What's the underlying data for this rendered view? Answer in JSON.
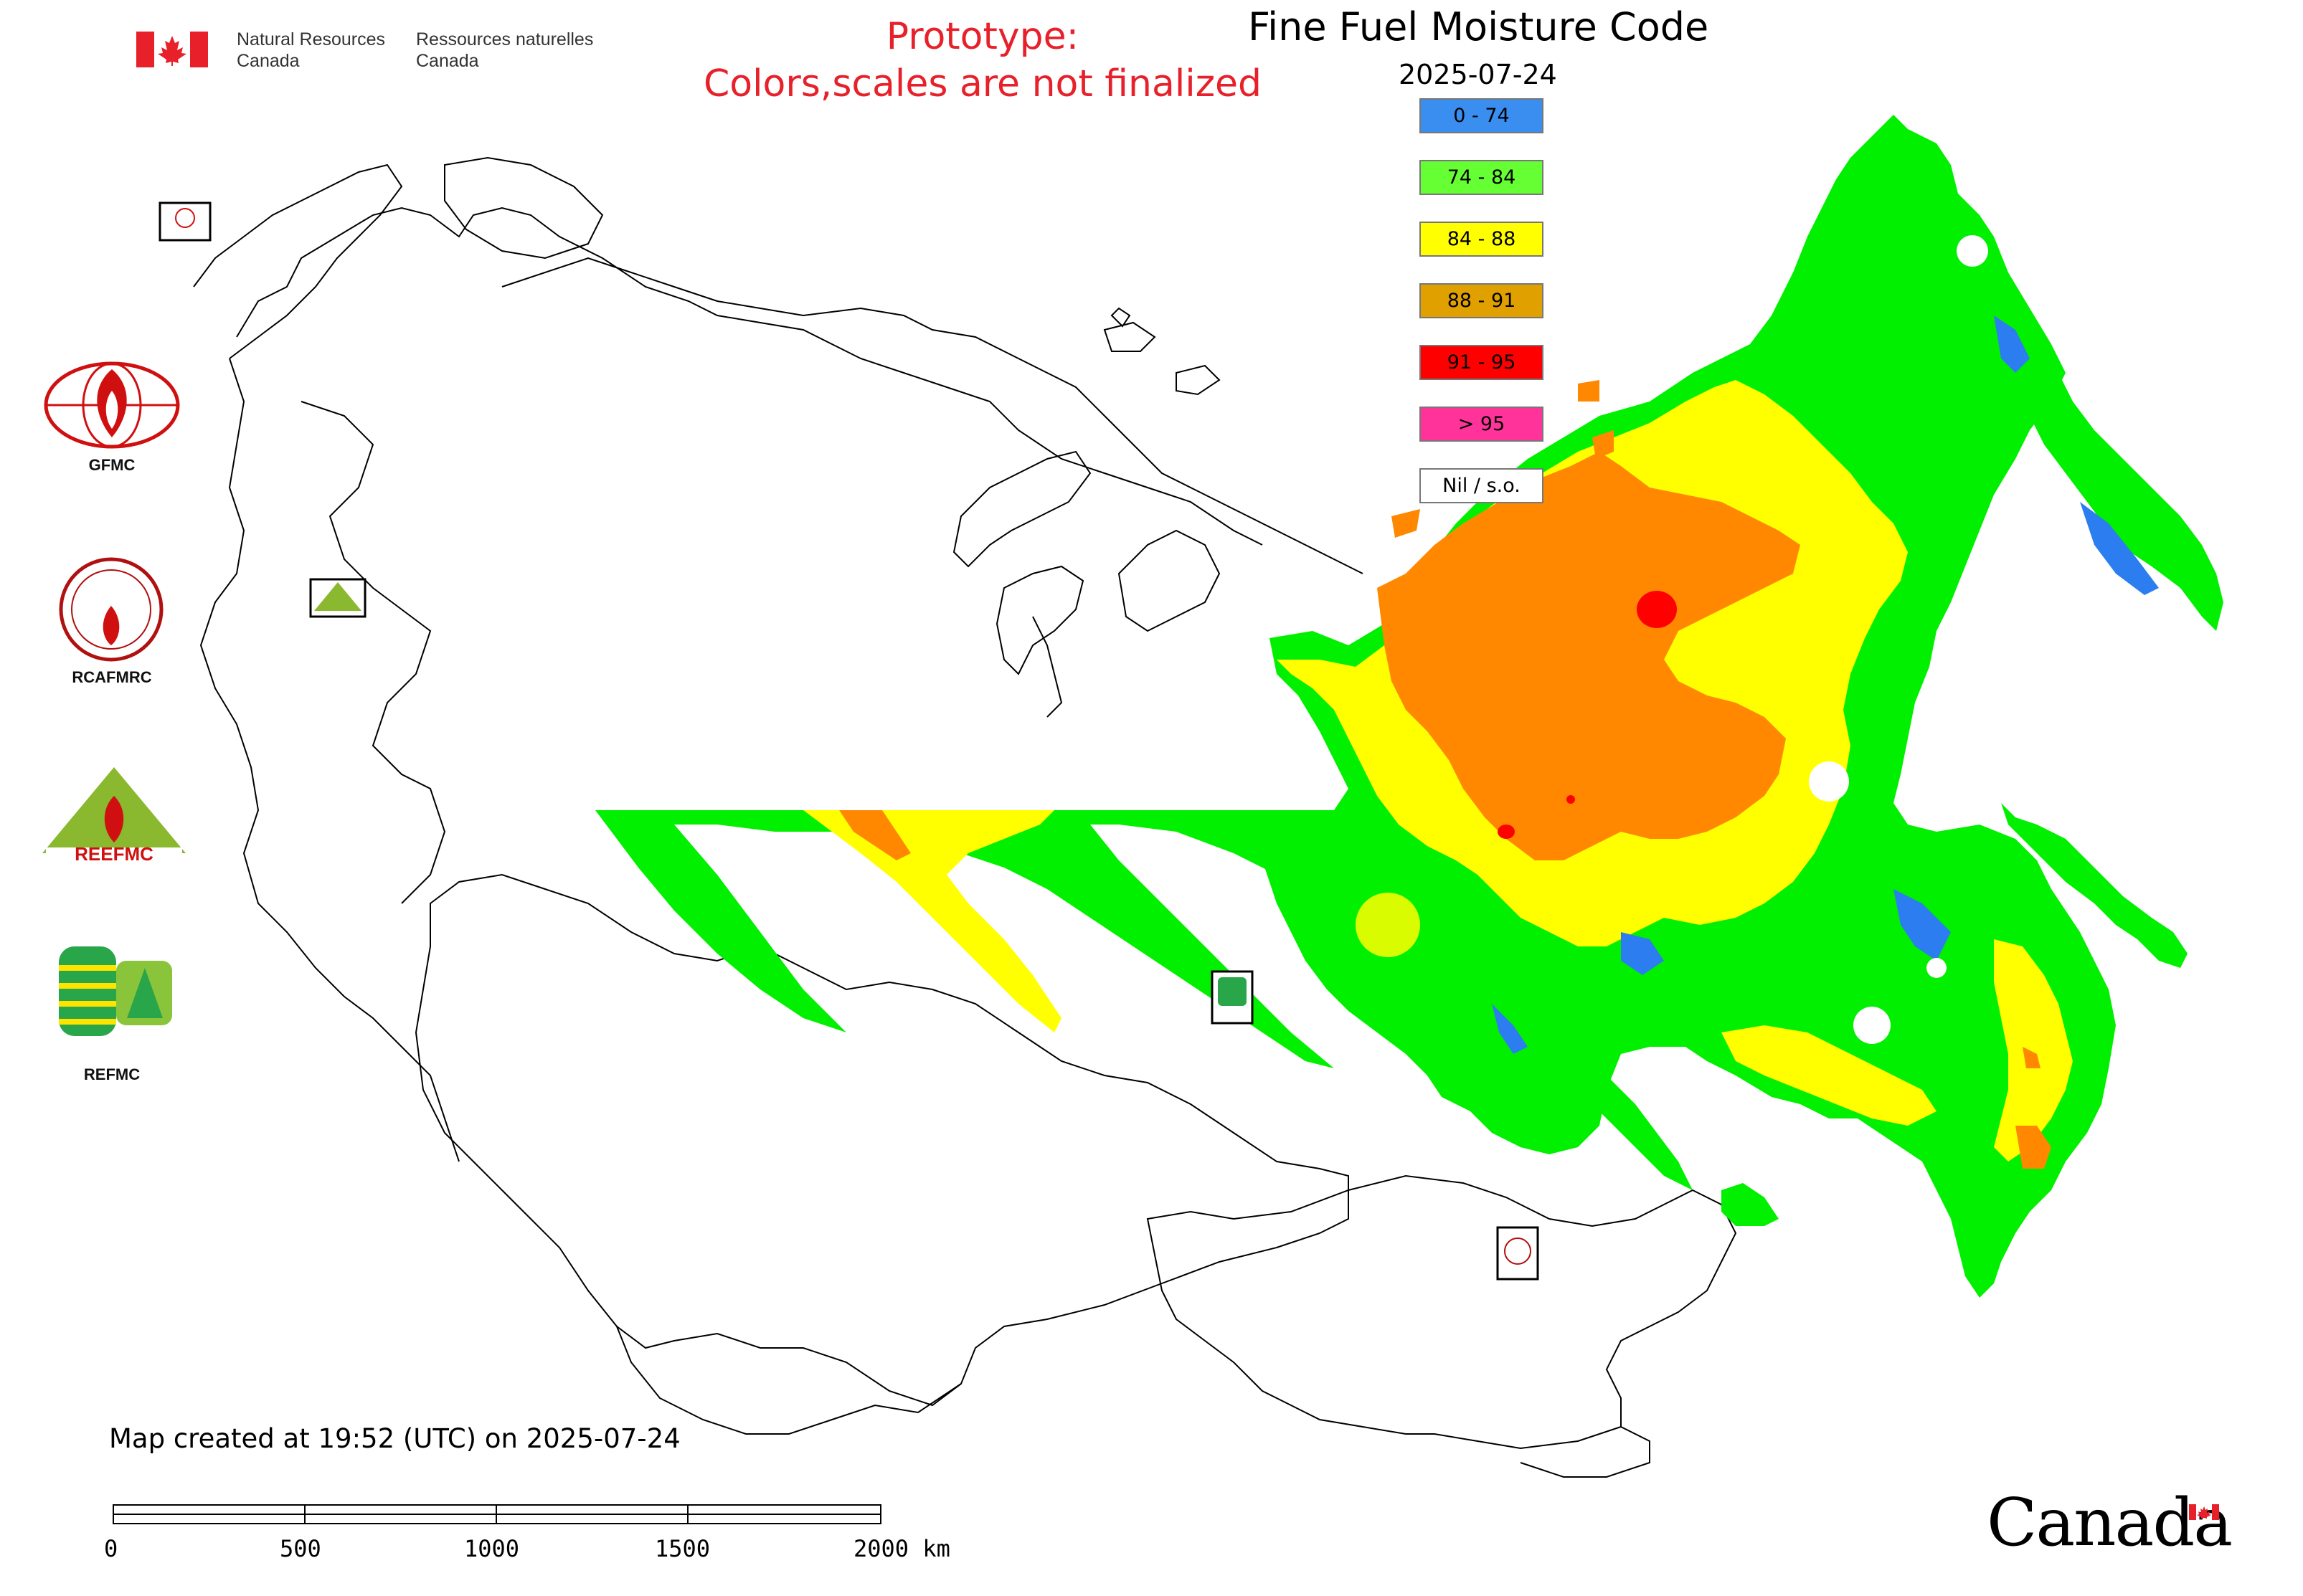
{
  "header": {
    "org_en_line1": "Natural Resources",
    "org_en_line2": "Canada",
    "org_fr_line1": "Ressources naturelles",
    "org_fr_line2": "Canada",
    "prototype_line1": "Prototype:",
    "prototype_line2": "Colors,scales are not finalized",
    "title": "Fine Fuel Moisture Code",
    "date": "2025-07-24"
  },
  "legend": {
    "items": [
      {
        "label": "0 - 74",
        "color": "#3a8ef0"
      },
      {
        "label": "74 - 84",
        "color": "#66ff33"
      },
      {
        "label": "84 - 88",
        "color": "#ffff00"
      },
      {
        "label": "88 - 91",
        "color": "#e0a000"
      },
      {
        "label": "91 - 95",
        "color": "#ff0000"
      },
      {
        "label": "> 95",
        "color": "#ff3399"
      },
      {
        "label": "Nil / s.o.",
        "color": "#ffffff"
      }
    ]
  },
  "logos": [
    {
      "label": "GFMC",
      "icon": "gfmc-logo-icon"
    },
    {
      "label": "RCAFMRC",
      "icon": "rcafmrc-logo-icon"
    },
    {
      "label": "",
      "icon": "reefmc-logo-icon"
    },
    {
      "label": "REFMC",
      "icon": "refmc-logo-icon"
    }
  ],
  "footer": {
    "created": "Map created at 19:52 (UTC) on 2025-07-24",
    "scale_ticks": [
      "0",
      "500",
      "1000",
      "1500",
      "2000 km"
    ],
    "canada_wordmark": "Canada"
  },
  "colors": {
    "green": "#00f000",
    "yellow": "#ffff00",
    "orange": "#ff8800",
    "red": "#ff0000",
    "blue": "#2c7ef0",
    "canada_red": "#e8202a"
  }
}
